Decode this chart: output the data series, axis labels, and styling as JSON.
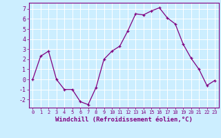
{
  "x": [
    0,
    1,
    2,
    3,
    4,
    5,
    6,
    7,
    8,
    9,
    10,
    11,
    12,
    13,
    14,
    15,
    16,
    17,
    18,
    19,
    20,
    21,
    22,
    23
  ],
  "y": [
    0,
    2.3,
    2.8,
    0.0,
    -1.0,
    -1.0,
    -2.2,
    -2.5,
    -0.8,
    2.0,
    2.8,
    3.3,
    4.8,
    6.5,
    6.4,
    6.8,
    7.1,
    6.1,
    5.5,
    3.5,
    2.1,
    1.0,
    -0.6,
    -0.1
  ],
  "line_color": "#800080",
  "marker": "+",
  "marker_color": "#800080",
  "bg_color": "#cceeff",
  "grid_color": "#ffffff",
  "xlabel": "Windchill (Refroidissement éolien,°C)",
  "xlabel_color": "#800080",
  "tick_color": "#800080",
  "ylim": [
    -2.8,
    7.6
  ],
  "xlim": [
    -0.5,
    23.5
  ],
  "yticks": [
    -2,
    -1,
    0,
    1,
    2,
    3,
    4,
    5,
    6,
    7
  ],
  "xticks": [
    0,
    1,
    2,
    3,
    4,
    5,
    6,
    7,
    8,
    9,
    10,
    11,
    12,
    13,
    14,
    15,
    16,
    17,
    18,
    19,
    20,
    21,
    22,
    23
  ],
  "spine_color": "#800080"
}
